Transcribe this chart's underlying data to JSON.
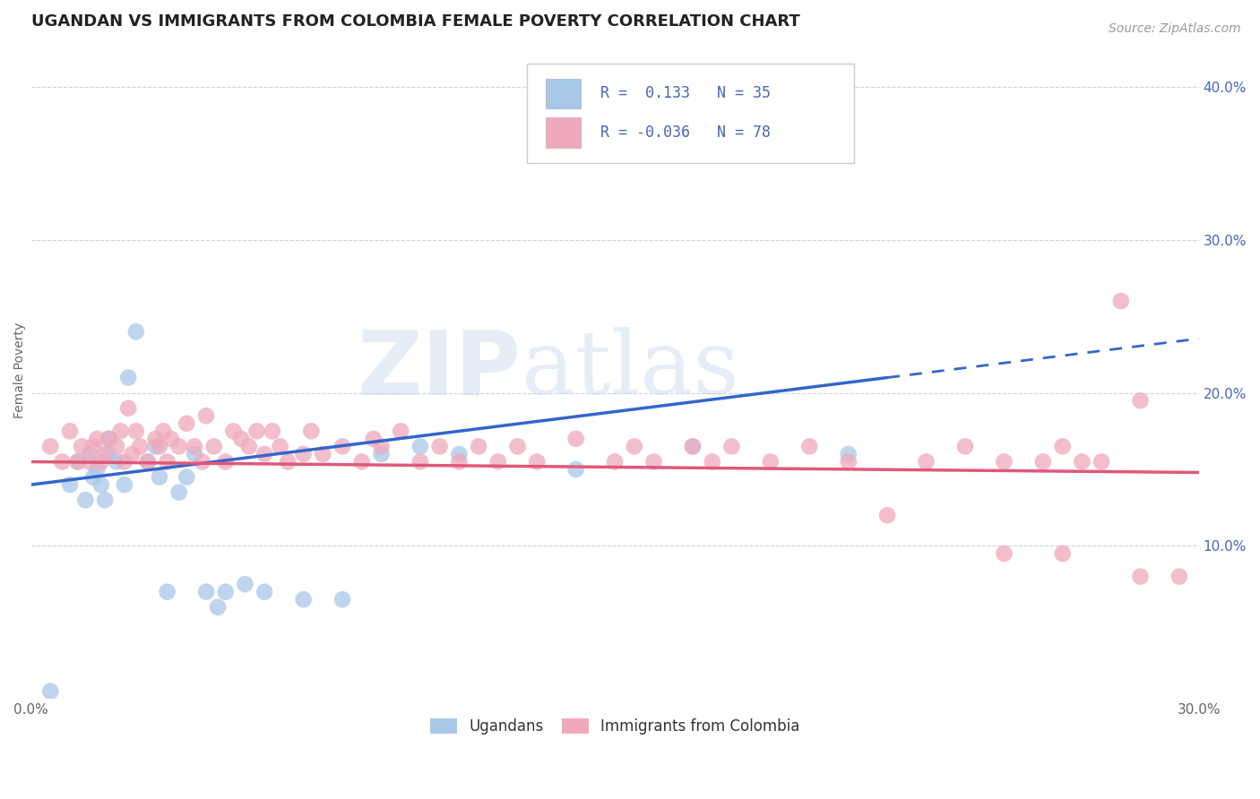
{
  "title": "UGANDAN VS IMMIGRANTS FROM COLOMBIA FEMALE POVERTY CORRELATION CHART",
  "source": "Source: ZipAtlas.com",
  "ylabel": "Female Poverty",
  "right_yticks": [
    0.1,
    0.2,
    0.3,
    0.4
  ],
  "right_ytick_labels": [
    "10.0%",
    "20.0%",
    "30.0%",
    "40.0%"
  ],
  "xlim": [
    0.0,
    0.3
  ],
  "ylim": [
    0.0,
    0.43
  ],
  "legend_labels_bottom": [
    "Ugandans",
    "Immigrants from Colombia"
  ],
  "legend_r1": "R =  0.133   N = 35",
  "legend_r2": "R = -0.036   N = 78",
  "watermark_zip": "ZIP",
  "watermark_atlas": "atlas",
  "blue_scatter_color": "#a8c8e8",
  "pink_scatter_color": "#f0a8bc",
  "blue_line_color": "#3366cc",
  "pink_line_color": "#e05878",
  "background_color": "#ffffff",
  "grid_color": "#c8d4e8",
  "legend_text_color": "#4466bb",
  "title_fontsize": 13,
  "source_fontsize": 10,
  "legend_fontsize": 12,
  "tick_fontsize": 11,
  "ylabel_fontsize": 10,
  "ugandan_x": [
    0.005,
    0.01,
    0.012,
    0.014,
    0.015,
    0.016,
    0.017,
    0.018,
    0.019,
    0.02,
    0.02,
    0.022,
    0.024,
    0.025,
    0.027,
    0.03,
    0.032,
    0.033,
    0.035,
    0.038,
    0.04,
    0.042,
    0.045,
    0.048,
    0.05,
    0.055,
    0.06,
    0.07,
    0.08,
    0.09,
    0.1,
    0.11,
    0.14,
    0.17,
    0.21
  ],
  "ugandan_y": [
    0.005,
    0.14,
    0.155,
    0.13,
    0.16,
    0.145,
    0.15,
    0.14,
    0.13,
    0.16,
    0.17,
    0.155,
    0.14,
    0.21,
    0.24,
    0.155,
    0.165,
    0.145,
    0.07,
    0.135,
    0.145,
    0.16,
    0.07,
    0.06,
    0.07,
    0.075,
    0.07,
    0.065,
    0.065,
    0.16,
    0.165,
    0.16,
    0.15,
    0.165,
    0.16
  ],
  "colombia_x": [
    0.005,
    0.008,
    0.01,
    0.012,
    0.013,
    0.015,
    0.016,
    0.017,
    0.018,
    0.019,
    0.02,
    0.022,
    0.023,
    0.024,
    0.025,
    0.026,
    0.027,
    0.028,
    0.03,
    0.032,
    0.033,
    0.034,
    0.035,
    0.036,
    0.038,
    0.04,
    0.042,
    0.044,
    0.045,
    0.047,
    0.05,
    0.052,
    0.054,
    0.056,
    0.058,
    0.06,
    0.062,
    0.064,
    0.066,
    0.07,
    0.072,
    0.075,
    0.08,
    0.085,
    0.088,
    0.09,
    0.095,
    0.1,
    0.105,
    0.11,
    0.115,
    0.12,
    0.125,
    0.13,
    0.14,
    0.15,
    0.155,
    0.16,
    0.17,
    0.175,
    0.18,
    0.19,
    0.2,
    0.21,
    0.22,
    0.23,
    0.24,
    0.25,
    0.26,
    0.265,
    0.27,
    0.275,
    0.28,
    0.285,
    0.25,
    0.265,
    0.285,
    0.295
  ],
  "colombia_y": [
    0.165,
    0.155,
    0.175,
    0.155,
    0.165,
    0.155,
    0.165,
    0.17,
    0.155,
    0.16,
    0.17,
    0.165,
    0.175,
    0.155,
    0.19,
    0.16,
    0.175,
    0.165,
    0.155,
    0.17,
    0.165,
    0.175,
    0.155,
    0.17,
    0.165,
    0.18,
    0.165,
    0.155,
    0.185,
    0.165,
    0.155,
    0.175,
    0.17,
    0.165,
    0.175,
    0.16,
    0.175,
    0.165,
    0.155,
    0.16,
    0.175,
    0.16,
    0.165,
    0.155,
    0.17,
    0.165,
    0.175,
    0.155,
    0.165,
    0.155,
    0.165,
    0.155,
    0.165,
    0.155,
    0.17,
    0.155,
    0.165,
    0.155,
    0.165,
    0.155,
    0.165,
    0.155,
    0.165,
    0.155,
    0.12,
    0.155,
    0.165,
    0.155,
    0.155,
    0.165,
    0.155,
    0.155,
    0.26,
    0.195,
    0.095,
    0.095,
    0.08,
    0.08
  ]
}
